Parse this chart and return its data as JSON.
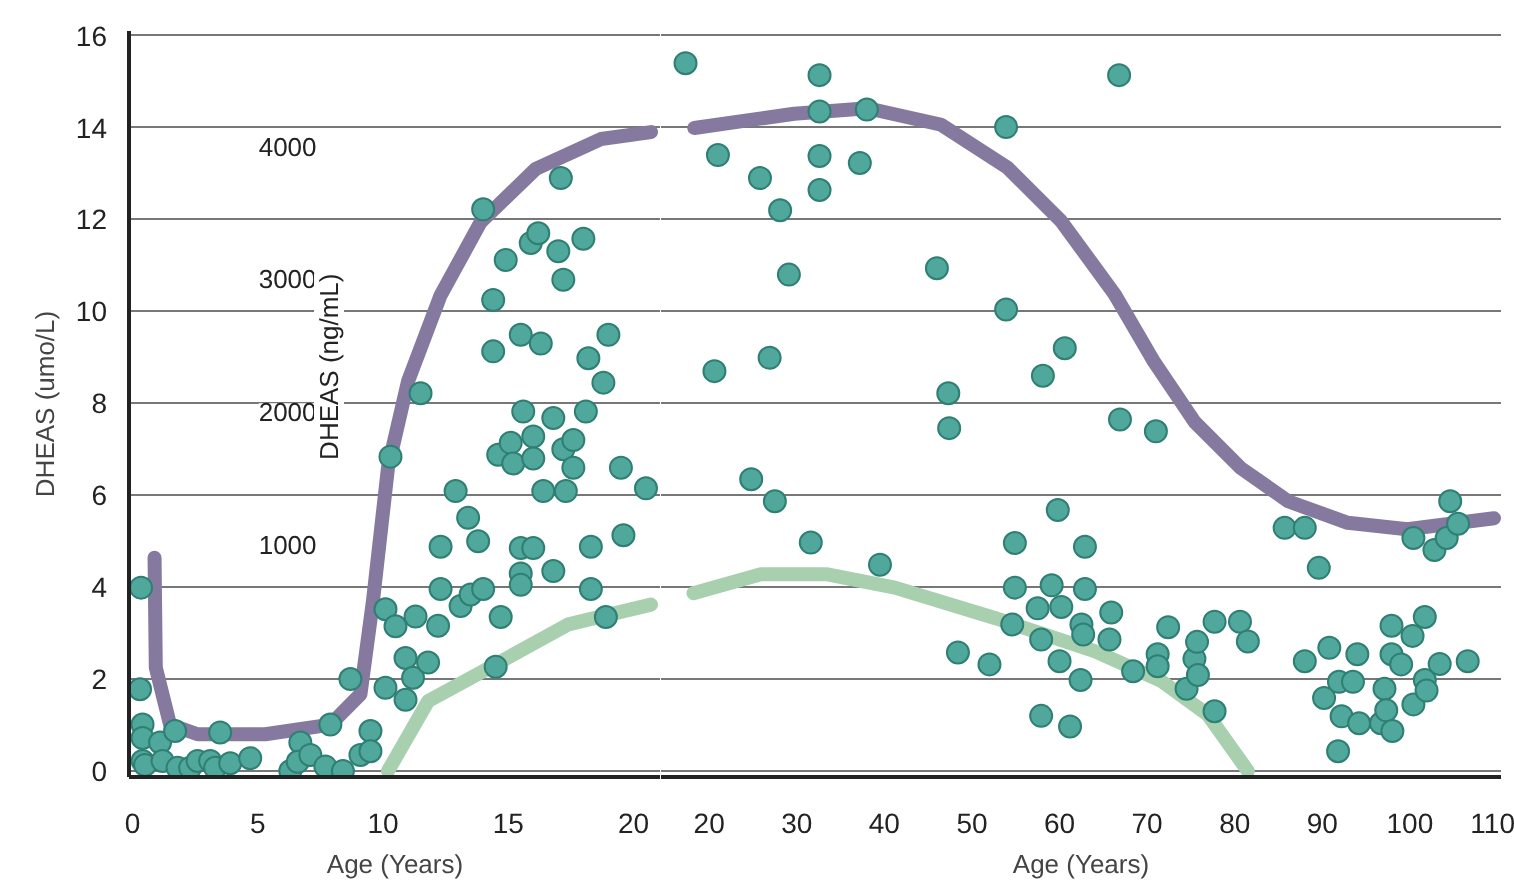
{
  "chart_data": [
    {
      "type": "scatter",
      "xlabel": "Age (Years)",
      "ylabel": "DHEAS (umo/L)",
      "y2label": "DHEAS (ng/mL)",
      "xlim": [
        -0.14,
        21.1
      ],
      "xticks": [
        0,
        5,
        10,
        15,
        20
      ],
      "ylim": [
        -0.13,
        16.1
      ],
      "yticks": [
        0,
        2,
        4,
        6,
        8,
        10,
        12,
        14,
        16
      ],
      "y2lim": [
        -745,
        4870
      ],
      "y2ticks": [
        1000,
        2000,
        3000,
        4000
      ],
      "grid": "y",
      "series": [
        {
          "marker": "circle",
          "color": "#4fa89b",
          "x": [
            0.34,
            0.3,
            0.4,
            0.4,
            0.4,
            0.5,
            1.1,
            1.2,
            1.7,
            1.8,
            2.3,
            2.6,
            3.1,
            3.3,
            3.5,
            3.9,
            4.7,
            6.3,
            6.7,
            6.6,
            7.1,
            7.7,
            7.9,
            8.4,
            8.7,
            9.1,
            9.5,
            9.5,
            10.1,
            10.1,
            10.5,
            10.3,
            10.9,
            10.9,
            11.2,
            11.3,
            11.5,
            11.8,
            12.2,
            12.3,
            12.3,
            12.9,
            13.1,
            13.4,
            13.5,
            13.8,
            14.0,
            14.0,
            14.5,
            14.4,
            14.4,
            14.6,
            14.7,
            14.9,
            15.1,
            15.2,
            15.5,
            15.6,
            15.5,
            15.5,
            15.5,
            15.9,
            16.0,
            16.0,
            16.0,
            16.2,
            16.3,
            16.4,
            16.8,
            16.8,
            17.0,
            17.1,
            17.2,
            17.2,
            17.3,
            17.6,
            17.6,
            18.0,
            18.1,
            18.2,
            18.3,
            18.3,
            18.9,
            18.8,
            19.0,
            19.5,
            19.6,
            20.5
          ],
          "values": [
            3.99,
            1.78,
            1.01,
            0.72,
            0.22,
            0.13,
            0.62,
            0.22,
            0.87,
            0.07,
            0.07,
            0.22,
            0.22,
            0.07,
            0.84,
            0.17,
            0.28,
            0.0,
            0.62,
            0.2,
            0.35,
            0.1,
            1.01,
            0.0,
            2.0,
            0.35,
            0.87,
            0.43,
            3.52,
            1.81,
            3.15,
            6.84,
            2.46,
            1.55,
            2.03,
            3.36,
            8.22,
            2.36,
            3.16,
            3.96,
            4.88,
            6.09,
            3.59,
            5.51,
            3.84,
            5.0,
            3.96,
            12.22,
            2.27,
            10.25,
            9.13,
            6.88,
            3.35,
            11.12,
            7.14,
            6.69,
            9.49,
            7.82,
            4.85,
            4.3,
            4.05,
            11.49,
            7.28,
            6.8,
            4.85,
            11.7,
            9.3,
            6.09,
            4.35,
            7.68,
            11.31,
            12.9,
            10.69,
            7.0,
            6.09,
            6.6,
            7.2,
            11.58,
            7.82,
            8.98,
            4.88,
            3.96,
            3.35,
            8.45,
            9.49,
            6.6,
            5.13,
            6.15
          ]
        },
        {
          "type": "line",
          "color": "#85799f",
          "x": [
            0.88,
            0.93,
            1.5,
            2.6,
            5.3,
            7.9,
            9.1,
            9.6,
            10.2,
            11.0,
            12.3,
            13.9,
            16.1,
            18.7,
            20.7
          ],
          "values": [
            4.64,
            2.25,
            1.01,
            0.8,
            0.8,
            1.01,
            1.67,
            3.7,
            6.6,
            8.48,
            10.35,
            11.94,
            13.1,
            13.75,
            13.9
          ]
        },
        {
          "type": "line",
          "color": "#a8d0af",
          "x": [
            10.2,
            11.8,
            14.5,
            17.4,
            20.7
          ],
          "values": [
            0,
            1.52,
            2.32,
            3.19,
            3.62
          ]
        }
      ]
    },
    {
      "type": "scatter",
      "xlabel": "Age (Years)",
      "xlim": [
        14.5,
        110.4
      ],
      "xticks": [
        20,
        30,
        40,
        50,
        60,
        70,
        80,
        90,
        100,
        110
      ],
      "ylim": [
        -0.13,
        16.1
      ],
      "yticks": [
        0,
        2,
        4,
        6,
        8,
        10,
        12,
        14,
        16
      ],
      "tick_labels": "x",
      "grid": "y",
      "series": [
        {
          "marker": "circle",
          "color": "#4fa89b",
          "x": [
            17.3,
            21.0,
            20.6,
            25.8,
            24.8,
            26.9,
            27.5,
            28.1,
            29.1,
            31.6,
            32.6,
            32.6,
            32.6,
            32.6,
            37.2,
            38.0,
            39.5,
            46.0,
            47.3,
            47.4,
            48.4,
            52.0,
            53.9,
            53.9,
            54.9,
            54.9,
            54.6,
            57.9,
            57.9,
            58.1,
            57.5,
            59.1,
            59.8,
            60.0,
            60.2,
            60.6,
            61.2,
            62.4,
            62.5,
            62.7,
            62.9,
            62.9,
            65.7,
            65.9,
            66.8,
            66.9,
            68.4,
            71.0,
            71.2,
            71.2,
            72.4,
            74.5,
            75.4,
            75.7,
            75.8,
            77.7,
            77.7,
            80.6,
            81.5,
            85.7,
            88.0,
            88.0,
            89.6,
            90.2,
            90.8,
            91.9,
            92.2,
            91.8,
            93.5,
            94.0,
            94.2,
            96.7,
            97.1,
            97.3,
            97.9,
            97.9,
            98.0,
            99.0,
            100.3,
            100.4,
            100.4,
            101.7,
            101.7,
            101.9,
            102.8,
            103.4,
            104.2,
            104.6,
            105.5,
            106.6
          ],
          "values": [
            15.4,
            13.4,
            8.7,
            12.9,
            6.35,
            8.99,
            5.87,
            12.2,
            10.8,
            4.97,
            15.14,
            14.35,
            13.38,
            12.64,
            13.23,
            14.39,
            4.49,
            10.94,
            8.22,
            7.46,
            2.58,
            2.32,
            14.01,
            10.04,
            4.96,
            3.99,
            3.19,
            2.86,
            1.2,
            8.6,
            3.54,
            4.04,
            5.68,
            2.39,
            3.57,
            9.2,
            0.97,
            1.98,
            3.19,
            2.97,
            4.88,
            3.96,
            2.86,
            3.45,
            15.14,
            7.65,
            2.17,
            7.39,
            2.54,
            2.28,
            3.13,
            1.79,
            2.44,
            2.81,
            2.09,
            1.3,
            3.25,
            3.25,
            2.82,
            5.29,
            5.29,
            2.39,
            4.42,
            1.59,
            2.68,
            1.94,
            1.19,
            0.43,
            1.94,
            2.54,
            1.04,
            1.04,
            1.79,
            1.32,
            3.16,
            2.54,
            0.87,
            2.32,
            2.94,
            1.45,
            5.07,
            3.35,
            1.98,
            1.75,
            4.81,
            2.33,
            5.07,
            5.87,
            5.38,
            2.39
          ]
        },
        {
          "type": "line",
          "color": "#85799f",
          "x": [
            18.3,
            29.7,
            38.1,
            46.5,
            54.1,
            60.2,
            66.3,
            70.8,
            75.4,
            80.7,
            86.1,
            92.9,
            99.7,
            109.6
          ],
          "values": [
            13.99,
            14.3,
            14.42,
            14.06,
            13.12,
            11.96,
            10.37,
            8.9,
            7.6,
            6.59,
            5.87,
            5.4,
            5.26,
            5.5
          ]
        },
        {
          "type": "line",
          "color": "#a8d0af",
          "x": [
            18.2,
            25.9,
            33.5,
            41.2,
            52.6,
            64.0,
            71.6,
            76.9,
            81.5
          ],
          "values": [
            3.87,
            4.28,
            4.28,
            3.99,
            3.33,
            2.61,
            1.96,
            1.23,
            0
          ]
        }
      ]
    }
  ]
}
